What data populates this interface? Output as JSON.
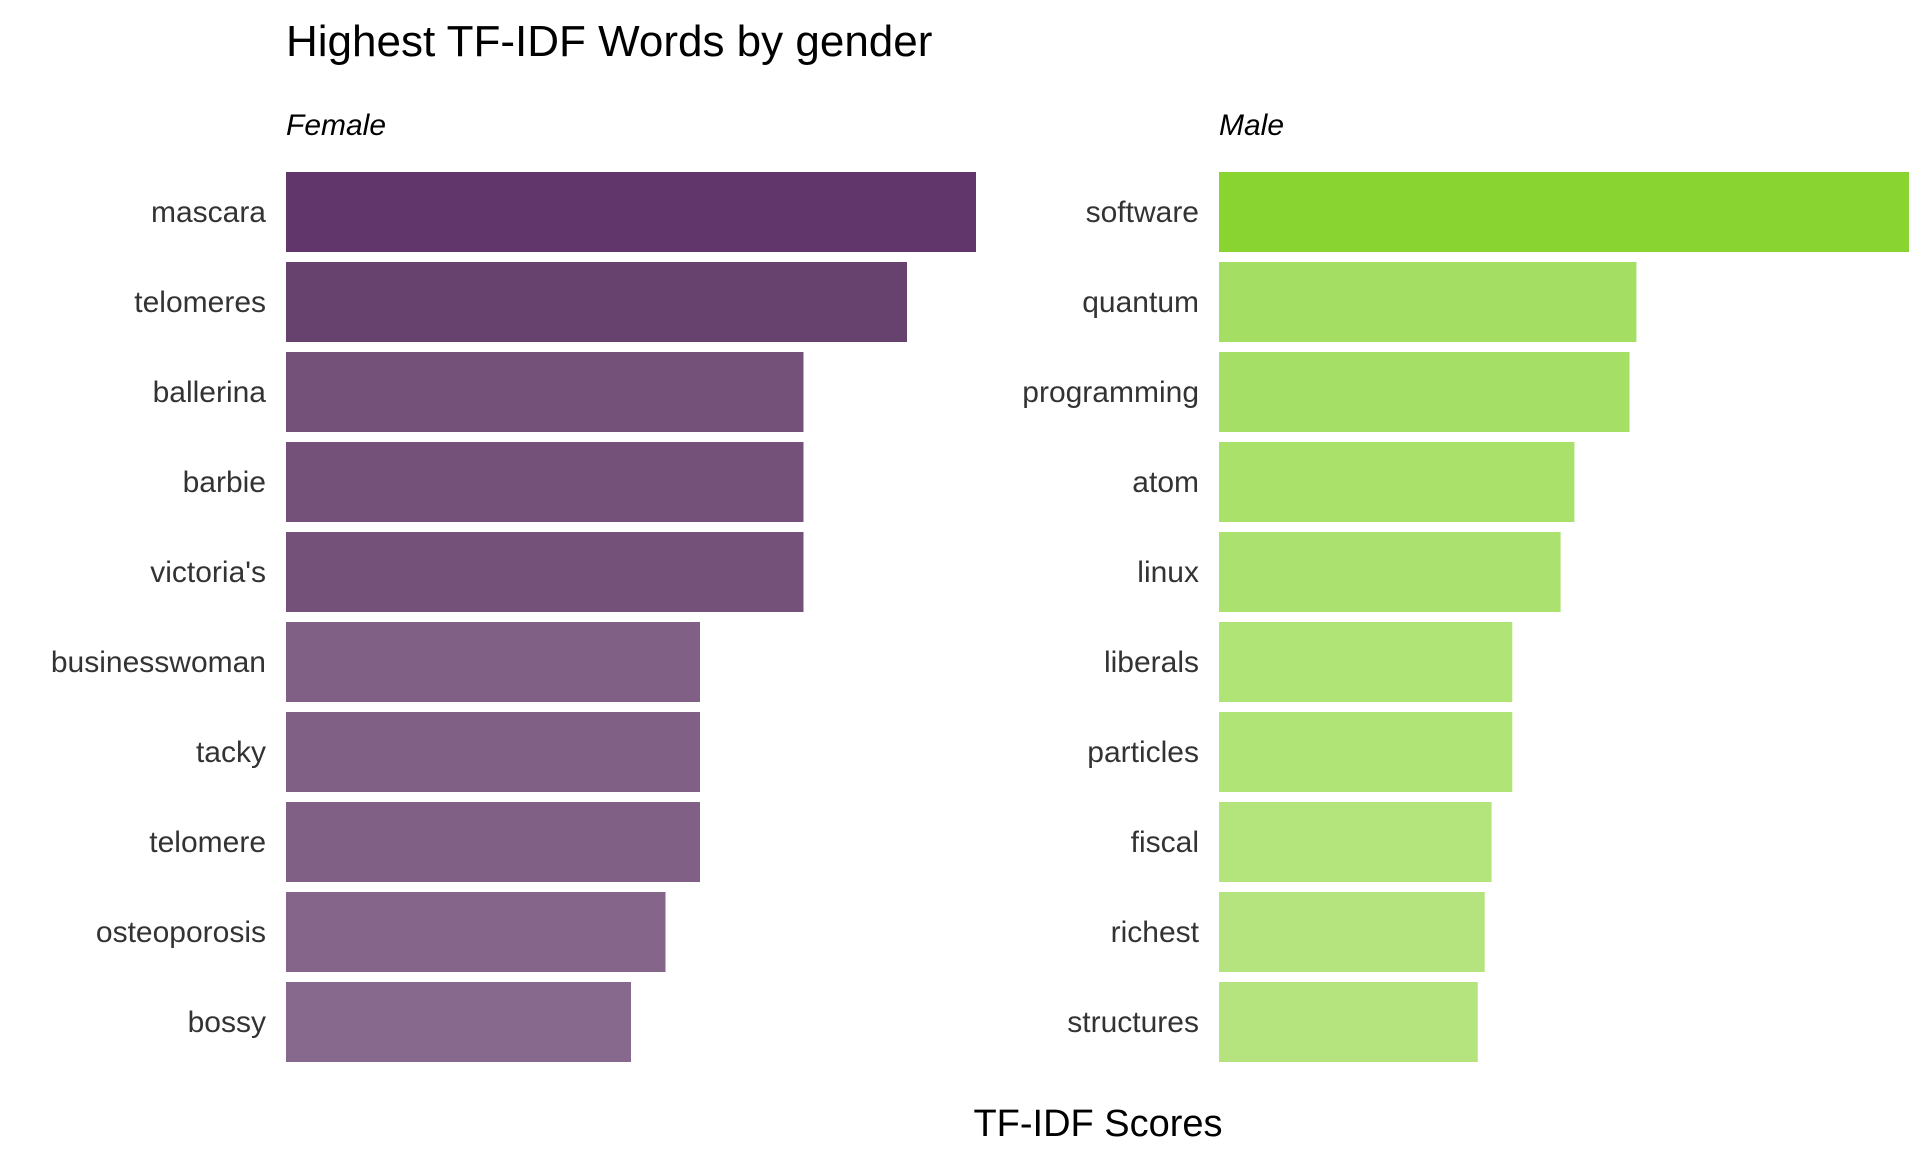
{
  "chart_data": {
    "type": "bar",
    "orientation": "horizontal",
    "title": "Highest TF-IDF Words by gender",
    "xlabel": "TF-IDF Scores",
    "ylabel": "",
    "grid": false,
    "legend": "none",
    "facets": [
      {
        "name": "Female",
        "colors": [
          "#61366b",
          "#68426f",
          "#745179",
          "#745179",
          "#745179",
          "#806084",
          "#806084",
          "#806084",
          "#85658a",
          "#86698d"
        ],
        "categories": [
          "mascara",
          "telomeres",
          "ballerina",
          "barbie",
          "victoria's",
          "businesswoman",
          "tacky",
          "telomere",
          "osteoporosis",
          "bossy"
        ],
        "values": [
          1.0,
          0.9,
          0.75,
          0.75,
          0.75,
          0.6,
          0.6,
          0.6,
          0.55,
          0.5
        ]
      },
      {
        "name": "Male",
        "colors": [
          "#89d431",
          "#a4df63",
          "#a5df65",
          "#a9e16b",
          "#abe16f",
          "#b1e477",
          "#b1e477",
          "#b4e47c",
          "#b5e47f",
          "#b5e47e"
        ],
        "categories": [
          "software",
          "quantum",
          "programming",
          "atom",
          "linux",
          "liberals",
          "particles",
          "fiscal",
          "richest",
          "structures"
        ],
        "values": [
          1.0,
          0.605,
          0.595,
          0.515,
          0.495,
          0.425,
          0.425,
          0.395,
          0.385,
          0.375
        ]
      }
    ],
    "xlim": [
      0,
      1.0
    ]
  }
}
